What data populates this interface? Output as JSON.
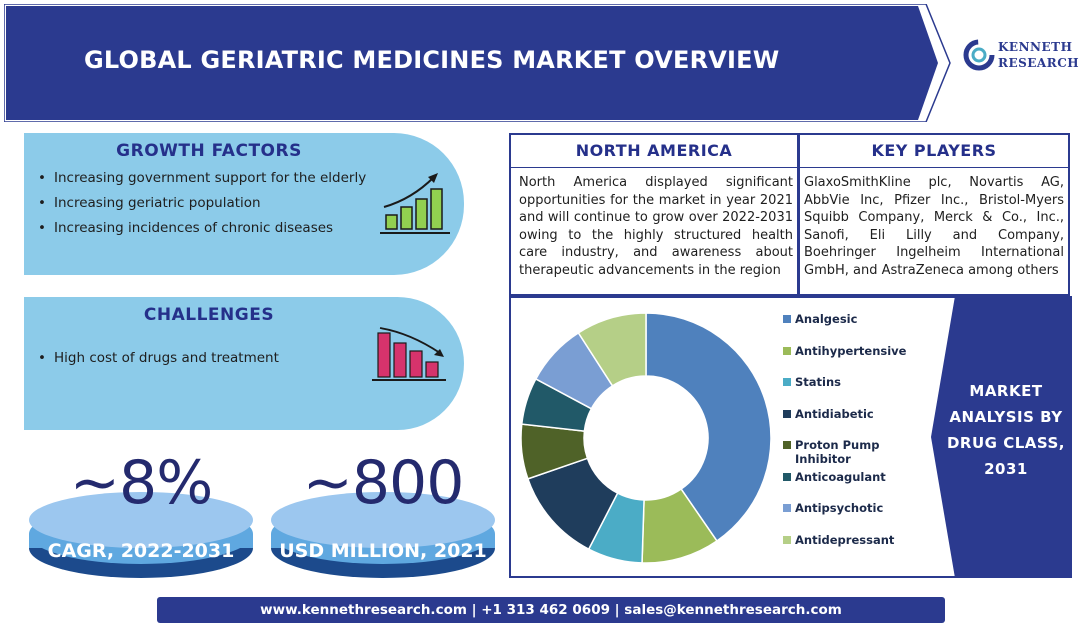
{
  "header": {
    "title": "GLOBAL GERIATRIC MEDICINES MARKET OVERVIEW",
    "logo_line1": "KENNETH",
    "logo_line2": "RESEARCH",
    "brand_color": "#2b3a8f"
  },
  "growth_factors": {
    "title": "GROWTH FACTORS",
    "items": [
      "Increasing government support for the elderly",
      "Increasing geriatric population",
      "Increasing incidences of chronic diseases"
    ],
    "icon": "growth-bar-chart-icon"
  },
  "challenges": {
    "title": "CHALLENGES",
    "items": [
      "High cost of drugs and treatment"
    ],
    "icon": "decline-bar-chart-icon"
  },
  "stats": {
    "cagr": {
      "value": "~8%",
      "label": "CAGR, 2022-2031"
    },
    "market_size": {
      "value": "~800",
      "label": "USD MILLION, 2021"
    }
  },
  "north_america": {
    "title": "NORTH AMERICA",
    "text": "North America displayed significant opportunities for the market in year 2021 and will continue to grow over 2022-2031 owing to the highly structured health care industry, and awareness about therapeutic advancements in the region"
  },
  "key_players": {
    "title": "KEY PLAYERS",
    "text": "GlaxoSmithKline plc, Novartis AG, AbbVie Inc, Pfizer Inc., Bristol-Myers Squibb Company, Merck & Co., Inc., Sanofi, Eli Lilly and Company, Boehringer Ingelheim International GmbH, and AstraZeneca among others"
  },
  "analysis": {
    "line1": "MARKET",
    "line2": "ANALYSIS BY",
    "line3": "DRUG CLASS,",
    "line4": "2031"
  },
  "chart_data": {
    "type": "pie",
    "donut": true,
    "categories": [
      "Analgesic",
      "Antihypertensive",
      "Statins",
      "Antidiabetic",
      "Proton Pump Inhibitor",
      "Anticoagulant",
      "Antipsychotic",
      "Antidepressant"
    ],
    "values": [
      40,
      10,
      7,
      12,
      7,
      6,
      8,
      9
    ],
    "colors": [
      "#4f81bd",
      "#9bbb59",
      "#4bacc6",
      "#1f3d5c",
      "#4f6228",
      "#215968",
      "#7a9ed3",
      "#b5cf87"
    ],
    "legend_position": "right"
  },
  "footer": {
    "text": "www.kennethresearch.com | +1 313 462 0609 | sales@kennethresearch.com"
  }
}
